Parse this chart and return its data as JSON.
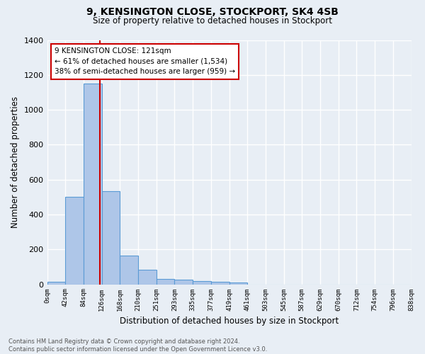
{
  "title1": "9, KENSINGTON CLOSE, STOCKPORT, SK4 4SB",
  "title2": "Size of property relative to detached houses in Stockport",
  "xlabel": "Distribution of detached houses by size in Stockport",
  "ylabel": "Number of detached properties",
  "bin_labels": [
    "0sqm",
    "42sqm",
    "84sqm",
    "126sqm",
    "168sqm",
    "210sqm",
    "251sqm",
    "293sqm",
    "335sqm",
    "377sqm",
    "419sqm",
    "461sqm",
    "503sqm",
    "545sqm",
    "587sqm",
    "629sqm",
    "670sqm",
    "712sqm",
    "754sqm",
    "796sqm",
    "838sqm"
  ],
  "bar_heights": [
    15,
    500,
    1150,
    535,
    165,
    85,
    30,
    25,
    18,
    14,
    12,
    0,
    0,
    0,
    0,
    0,
    0,
    0,
    0,
    0
  ],
  "bar_color": "#aec6e8",
  "bar_edge_color": "#5b9bd5",
  "bg_color": "#e8eef5",
  "grid_color": "#ffffff",
  "vline_x": 121,
  "bin_starts": [
    0,
    42,
    84,
    126,
    168,
    210,
    251,
    293,
    335,
    377,
    419,
    461,
    503,
    545,
    587,
    629,
    670,
    712,
    754,
    796,
    838
  ],
  "annotation_text": "9 KENSINGTON CLOSE: 121sqm\n← 61% of detached houses are smaller (1,534)\n38% of semi-detached houses are larger (959) →",
  "annotation_box_color": "#ffffff",
  "annotation_box_edge": "#cc0000",
  "vline_color": "#cc0000",
  "footer": "Contains HM Land Registry data © Crown copyright and database right 2024.\nContains public sector information licensed under the Open Government Licence v3.0.",
  "ylim": [
    0,
    1400
  ],
  "yticks": [
    0,
    200,
    400,
    600,
    800,
    1000,
    1200,
    1400
  ]
}
